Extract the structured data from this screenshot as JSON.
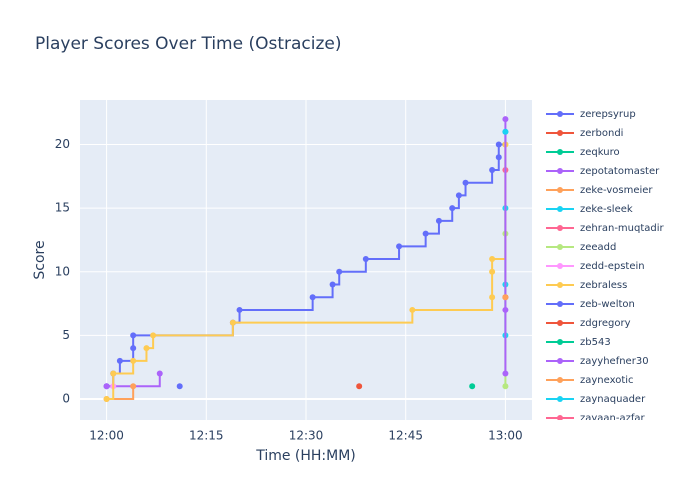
{
  "chart_data": {
    "type": "line",
    "line_shape": "hv",
    "title": "Player Scores Over Time (Ostracize)",
    "x_label": "Time (HH:MM)",
    "y_label": "Score",
    "xlim": [
      "11:56",
      "13:04"
    ],
    "xticks": [
      "12:00",
      "12:15",
      "12:30",
      "12:45",
      "13:00"
    ],
    "ylim": [
      -1.65,
      23.5
    ],
    "yticks": [
      0,
      5,
      10,
      15,
      20
    ],
    "grid": true,
    "legend": "right",
    "series": [
      {
        "name": "zerepsyrup",
        "color": "#636efa",
        "x": [
          "12:00",
          "12:01",
          "12:02",
          "12:04",
          "12:04",
          "12:19",
          "12:20",
          "12:31",
          "12:34",
          "12:35",
          "12:39",
          "12:44",
          "12:48",
          "12:50",
          "12:52",
          "12:53",
          "12:54",
          "12:58",
          "12:59",
          "12:59",
          "13:00"
        ],
        "values": [
          1,
          2,
          3,
          4,
          5,
          6,
          7,
          8,
          9,
          10,
          11,
          12,
          13,
          14,
          15,
          16,
          17,
          18,
          19,
          20,
          21
        ]
      },
      {
        "name": "zerbondi",
        "color": "#EF553B",
        "x": [
          "12:38"
        ],
        "values": [
          1
        ]
      },
      {
        "name": "zeqkuro",
        "color": "#00cc96",
        "x": [
          "12:55"
        ],
        "values": [
          1
        ]
      },
      {
        "name": "zepotatomaster",
        "color": "#ab63fa",
        "x": [
          "12:00",
          "12:08"
        ],
        "values": [
          1,
          2
        ]
      },
      {
        "name": "zeke-vosmeier",
        "color": "#FFA15A",
        "x": [
          "12:00",
          "12:04"
        ],
        "values": [
          0,
          1
        ]
      },
      {
        "name": "zeke-sleek",
        "color": "#19d3f3",
        "x": [
          "13:00",
          "13:00",
          "13:00"
        ],
        "values": [
          5,
          9,
          15
        ]
      },
      {
        "name": "zehran-muqtadir",
        "color": "#FF6692",
        "x": [
          "13:00"
        ],
        "values": [
          18
        ]
      },
      {
        "name": "zeeadd",
        "color": "#B6E880",
        "x": [
          "13:00",
          "13:00",
          "13:00"
        ],
        "values": [
          1,
          13,
          20
        ]
      },
      {
        "name": "zedd-epstein",
        "color": "#FF97FF",
        "x": [
          "12:01"
        ],
        "values": [
          1
        ]
      },
      {
        "name": "zebraless",
        "color": "#FECB52",
        "x": [
          "12:00",
          "12:01",
          "12:04",
          "12:06",
          "12:07",
          "12:19",
          "12:46",
          "12:58",
          "12:58",
          "12:58",
          "13:00"
        ],
        "values": [
          0,
          2,
          3,
          4,
          5,
          6,
          7,
          8,
          10,
          11,
          20
        ]
      },
      {
        "name": "zeb-welton",
        "color": "#636efa",
        "x": [
          "12:11"
        ],
        "values": [
          1
        ]
      },
      {
        "name": "zdgregory",
        "color": "#EF553B",
        "x": [
          "13:00"
        ],
        "values": [
          8
        ]
      },
      {
        "name": "zb543",
        "color": "#00cc96",
        "x": [],
        "values": []
      },
      {
        "name": "zayyhefner30",
        "color": "#ab63fa",
        "x": [
          "13:00",
          "13:00",
          "13:00"
        ],
        "values": [
          2,
          7,
          22
        ]
      },
      {
        "name": "zaynexotic",
        "color": "#FFA15A",
        "x": [
          "13:00"
        ],
        "values": [
          8
        ]
      },
      {
        "name": "zaynaquader",
        "color": "#19d3f3",
        "x": [
          "13:00"
        ],
        "values": [
          21
        ]
      },
      {
        "name": "zayaan-azfar",
        "color": "#FF6692",
        "x": [],
        "values": []
      }
    ]
  }
}
